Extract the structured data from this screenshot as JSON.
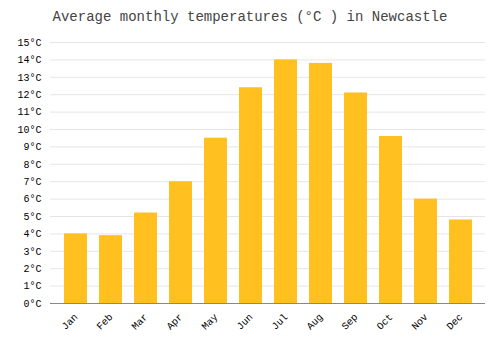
{
  "chart_data": {
    "type": "bar",
    "title": "Average monthly temperatures (°C ) in Newcastle",
    "categories": [
      "Jan",
      "Feb",
      "Mar",
      "Apr",
      "May",
      "Jun",
      "Jul",
      "Aug",
      "Sep",
      "Oct",
      "Nov",
      "Dec"
    ],
    "values": [
      4.0,
      3.9,
      5.2,
      7.0,
      9.5,
      12.4,
      14.0,
      13.8,
      12.1,
      9.6,
      6.0,
      4.8
    ],
    "color": "#FFC020",
    "ylim": [
      0,
      15
    ],
    "yticks": [
      {
        "value": 0,
        "label": "0°C"
      },
      {
        "value": 1,
        "label": "1°C"
      },
      {
        "value": 2,
        "label": "2°C"
      },
      {
        "value": 3,
        "label": "3°C"
      },
      {
        "value": 4,
        "label": "4°C"
      },
      {
        "value": 5,
        "label": "5°C"
      },
      {
        "value": 6,
        "label": "6°C"
      },
      {
        "value": 7,
        "label": "7°C"
      },
      {
        "value": 8,
        "label": "8°C"
      },
      {
        "value": 9,
        "label": "9°C"
      },
      {
        "value": 10,
        "label": "10°C"
      },
      {
        "value": 11,
        "label": "11°C"
      },
      {
        "value": 12,
        "label": "12°C"
      },
      {
        "value": 13,
        "label": "13°C"
      },
      {
        "value": 14,
        "label": "14°C"
      },
      {
        "value": 15,
        "label": "15°C"
      }
    ],
    "grid": true
  }
}
